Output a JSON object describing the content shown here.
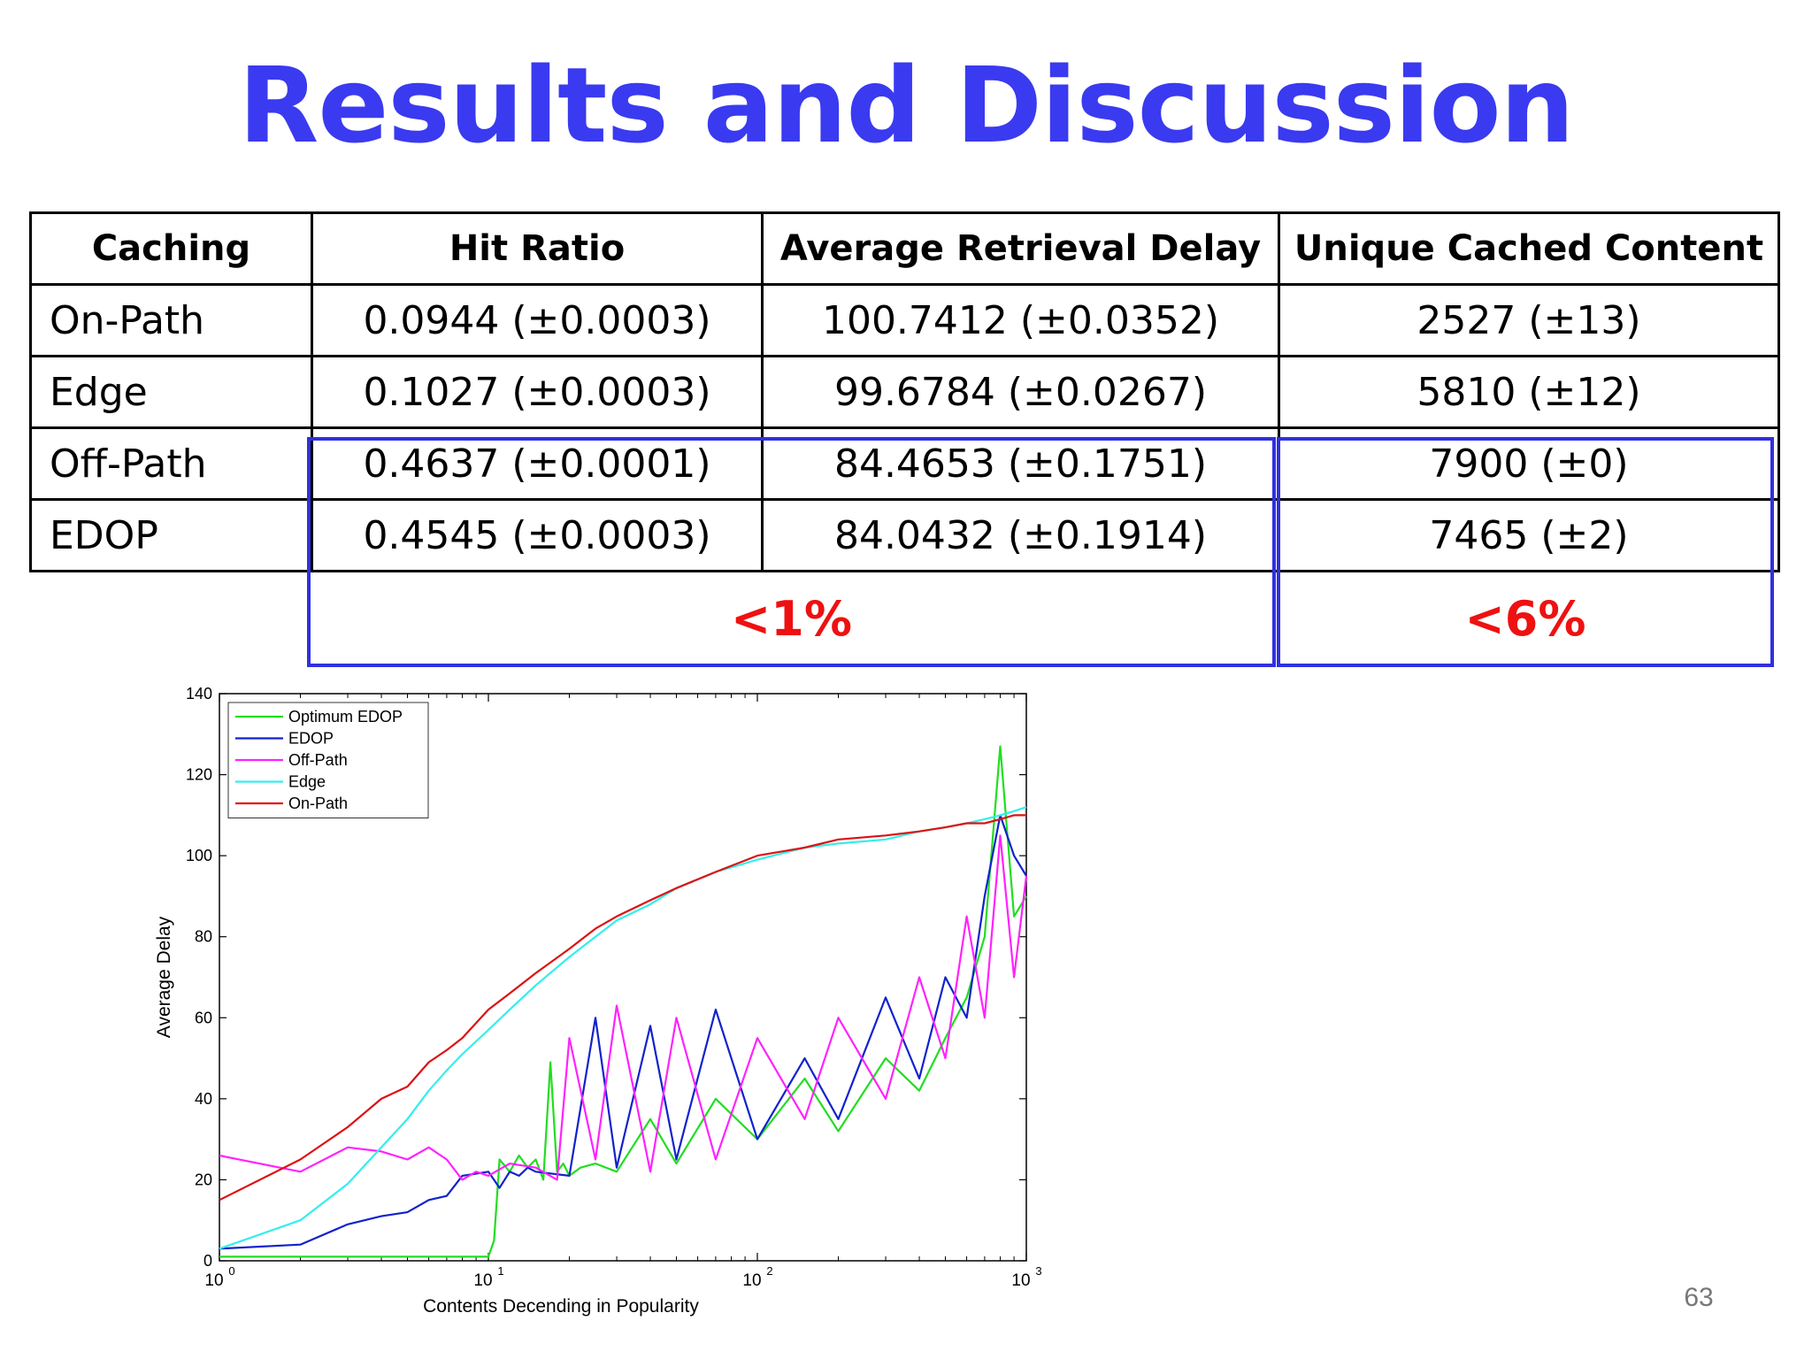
{
  "title": "Results and Discussion",
  "table": {
    "headers": [
      "Caching",
      "Hit Ratio",
      "Average Retrieval Delay",
      "Unique Cached Content"
    ],
    "rows": [
      [
        "On-Path",
        "0.0944 (±0.0003)",
        "100.7412 (±0.0352)",
        "2527 (±13)"
      ],
      [
        "Edge",
        "0.1027 (±0.0003)",
        "99.6784 (±0.0267)",
        "5810 (±12)"
      ],
      [
        "Off-Path",
        "0.4637 (±0.0001)",
        "84.4653 (±0.1751)",
        "7900 (±0)"
      ],
      [
        "EDOP",
        "0.4545 (±0.0003)",
        "84.0432 (±0.1914)",
        "7465 (±2)"
      ]
    ]
  },
  "highlights": {
    "left_label": "<1%",
    "right_label": "<6%"
  },
  "page_number": "63",
  "chart_data": {
    "type": "line",
    "xlabel": "Contents Decending in Popularity",
    "ylabel": "Average Delay",
    "xscale": "log",
    "xlim": [
      1,
      1000
    ],
    "ylim": [
      0,
      140
    ],
    "x_ticks": [
      1,
      10,
      100,
      1000
    ],
    "x_tick_labels": [
      {
        "base": "10",
        "exp": "0"
      },
      {
        "base": "10",
        "exp": "1"
      },
      {
        "base": "10",
        "exp": "2"
      },
      {
        "base": "10",
        "exp": "3"
      }
    ],
    "y_ticks": [
      0,
      20,
      40,
      60,
      80,
      100,
      120,
      140
    ],
    "legend_position": "top-left",
    "series": [
      {
        "name": "Optimum EDOP",
        "color": "#22dd22",
        "x": [
          1,
          2,
          5,
          10,
          10.5,
          11,
          12,
          13,
          14,
          15,
          16,
          17,
          18,
          19,
          20,
          22,
          25,
          30,
          40,
          50,
          70,
          100,
          150,
          200,
          300,
          400,
          500,
          600,
          700,
          800,
          900,
          1000
        ],
        "y": [
          1,
          1,
          1,
          1,
          5,
          25,
          22,
          26,
          23,
          25,
          20,
          49,
          22,
          24,
          21,
          23,
          24,
          22,
          35,
          24,
          40,
          30,
          45,
          32,
          50,
          42,
          55,
          65,
          80,
          127,
          85,
          90
        ]
      },
      {
        "name": "EDOP",
        "color": "#1122cc",
        "x": [
          1,
          2,
          3,
          4,
          5,
          6,
          7,
          8,
          10,
          11,
          12,
          13,
          14,
          15,
          20,
          25,
          30,
          40,
          50,
          70,
          100,
          150,
          200,
          300,
          400,
          500,
          600,
          700,
          800,
          900,
          1000
        ],
        "y": [
          3,
          4,
          9,
          11,
          12,
          15,
          16,
          21,
          22,
          18,
          22,
          21,
          23,
          22,
          21,
          60,
          23,
          58,
          25,
          62,
          30,
          50,
          35,
          65,
          45,
          70,
          60,
          90,
          110,
          100,
          95
        ]
      },
      {
        "name": "Off-Path",
        "color": "#ff22ff",
        "x": [
          1,
          2,
          3,
          4,
          5,
          6,
          7,
          8,
          9,
          10,
          12,
          15,
          18,
          20,
          25,
          30,
          40,
          50,
          70,
          100,
          150,
          200,
          300,
          400,
          500,
          600,
          700,
          800,
          900,
          1000
        ],
        "y": [
          26,
          22,
          28,
          27,
          25,
          28,
          25,
          20,
          22,
          21,
          24,
          23,
          20,
          55,
          25,
          63,
          22,
          60,
          25,
          55,
          35,
          60,
          40,
          70,
          50,
          85,
          60,
          105,
          70,
          95
        ]
      },
      {
        "name": "Edge",
        "color": "#33eeee",
        "x": [
          1,
          2,
          3,
          4,
          5,
          6,
          7,
          8,
          10,
          12,
          15,
          20,
          25,
          30,
          40,
          50,
          70,
          100,
          150,
          200,
          300,
          400,
          500,
          600,
          700,
          800,
          900,
          1000
        ],
        "y": [
          3,
          10,
          19,
          28,
          35,
          42,
          47,
          51,
          57,
          62,
          68,
          75,
          80,
          84,
          88,
          92,
          96,
          99,
          102,
          103,
          104,
          106,
          107,
          108,
          109,
          110,
          111,
          112
        ]
      },
      {
        "name": "On-Path",
        "color": "#dd1111",
        "x": [
          1,
          2,
          3,
          4,
          5,
          6,
          7,
          8,
          10,
          12,
          15,
          20,
          25,
          30,
          40,
          50,
          70,
          100,
          150,
          200,
          300,
          400,
          500,
          600,
          700,
          800,
          900,
          1000
        ],
        "y": [
          15,
          25,
          33,
          40,
          43,
          49,
          52,
          55,
          62,
          66,
          71,
          77,
          82,
          85,
          89,
          92,
          96,
          100,
          102,
          104,
          105,
          106,
          107,
          108,
          108,
          109,
          110,
          110
        ]
      }
    ]
  }
}
